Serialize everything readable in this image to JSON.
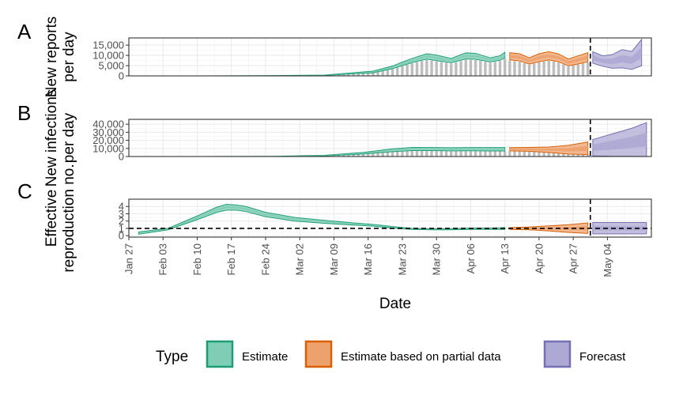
{
  "colors": {
    "estimate": "#1b9e77",
    "estimate_fill": "#7fcdb4",
    "partial": "#d95f02",
    "partial_fill": "#eda26d",
    "forecast": "#7570b3",
    "forecast_fill": "#ada9d4",
    "bars": "#bdbdbd"
  },
  "chart_data": [
    {
      "panel": "A",
      "type": "area",
      "ylabel_lines": [
        "New reports",
        "per day"
      ],
      "yticks": [
        0,
        5000,
        10000,
        15000
      ],
      "ytick_labels": [
        "0",
        "5,000",
        "10,000",
        "15,000"
      ],
      "ylim": [
        0,
        18500
      ],
      "bars_note": "daily reported cases shown as grey bars",
      "series": [
        {
          "type": "Estimate",
          "x": [
            0,
            10,
            20,
            30,
            40,
            50,
            54,
            56,
            58,
            61,
            63,
            66,
            69,
            71,
            74,
            76,
            77
          ],
          "lower": [
            0,
            0,
            20,
            80,
            250,
            1500,
            3500,
            5000,
            6500,
            8200,
            7400,
            6400,
            8300,
            8100,
            6800,
            7600,
            8800
          ],
          "upper": [
            0,
            0,
            40,
            140,
            400,
            2300,
            4800,
            6700,
            8500,
            10800,
            10100,
            8500,
            11200,
            11000,
            8800,
            9800,
            11500
          ]
        },
        {
          "type": "Estimate based on partial data",
          "x": [
            78,
            80,
            82,
            84,
            86,
            88,
            90,
            92,
            94
          ],
          "lower": [
            7800,
            7300,
            5800,
            6900,
            7800,
            6900,
            4900,
            5800,
            6900
          ],
          "upper": [
            11300,
            10800,
            8800,
            10800,
            11800,
            10700,
            8200,
            9800,
            11300
          ]
        },
        {
          "type": "Forecast",
          "x": [
            95,
            97,
            99,
            101,
            103,
            105
          ],
          "lower": [
            6200,
            4700,
            3700,
            3900,
            3200,
            4900
          ],
          "upper": [
            11800,
            9800,
            10400,
            12800,
            11900,
            17800
          ]
        }
      ]
    },
    {
      "panel": "B",
      "type": "area",
      "ylabel_lines": [
        "New infections",
        "per day"
      ],
      "yticks": [
        0,
        10000,
        20000,
        30000,
        40000
      ],
      "ytick_labels": [
        "0",
        "10,000",
        "20,000",
        "30,000",
        "40,000"
      ],
      "ylim": [
        0,
        46000
      ],
      "series": [
        {
          "type": "Estimate",
          "x": [
            0,
            10,
            20,
            30,
            40,
            48,
            54,
            58,
            62,
            66,
            70,
            74,
            77
          ],
          "lower": [
            0,
            0,
            40,
            150,
            800,
            3000,
            6000,
            7400,
            7300,
            7000,
            7100,
            6900,
            6900
          ],
          "upper": [
            0,
            0,
            80,
            300,
            1500,
            5000,
            9500,
            11200,
            11100,
            10900,
            11100,
            11100,
            11100
          ]
        },
        {
          "type": "Estimate based on partial data",
          "x": [
            78,
            82,
            86,
            90,
            94
          ],
          "lower": [
            7000,
            6500,
            5000,
            3000,
            2300
          ],
          "upper": [
            11000,
            11200,
            11800,
            13800,
            18000
          ]
        },
        {
          "type": "Forecast",
          "x": [
            95,
            99,
            103,
            106
          ],
          "lower": [
            800,
            300,
            200,
            0
          ],
          "upper": [
            21000,
            28000,
            35000,
            42000
          ]
        }
      ]
    },
    {
      "panel": "C",
      "type": "area",
      "ylabel_lines": [
        "Effective",
        "reproduction no."
      ],
      "yticks": [
        0,
        1,
        2,
        3,
        4
      ],
      "ytick_labels": [
        "0",
        "1",
        "2",
        "3",
        "4"
      ],
      "ylim": [
        -0.2,
        5.0
      ],
      "hline": 1,
      "series": [
        {
          "type": "Estimate",
          "x": [
            2,
            8,
            14,
            18,
            20,
            22,
            24,
            28,
            34,
            40,
            46,
            50,
            54,
            58,
            62,
            66,
            70,
            74,
            77
          ],
          "lower": [
            0.2,
            0.8,
            2.2,
            3.2,
            3.5,
            3.5,
            3.3,
            2.6,
            2.0,
            1.7,
            1.45,
            1.3,
            1.05,
            0.85,
            0.8,
            0.8,
            0.85,
            0.85,
            0.85
          ],
          "upper": [
            0.5,
            1.0,
            2.7,
            3.9,
            4.3,
            4.2,
            4.0,
            3.2,
            2.5,
            2.1,
            1.75,
            1.55,
            1.25,
            1.0,
            0.95,
            0.95,
            1.05,
            1.05,
            1.1
          ]
        },
        {
          "type": "Estimate based on partial data",
          "x": [
            78,
            82,
            86,
            90,
            94
          ],
          "lower": [
            0.85,
            0.8,
            0.65,
            0.45,
            0.3
          ],
          "upper": [
            1.1,
            1.2,
            1.35,
            1.5,
            1.75
          ]
        },
        {
          "type": "Forecast",
          "x": [
            95,
            97,
            100,
            103,
            106
          ],
          "lower": [
            0.25,
            0.25,
            0.25,
            0.25,
            0.25
          ],
          "upper": [
            1.8,
            1.8,
            1.8,
            1.8,
            1.8
          ]
        }
      ]
    }
  ],
  "x_axis": {
    "xlabel": "Date",
    "day_start": 0,
    "day_end": 107,
    "ticks": [
      {
        "day": 0,
        "label": "Jan 27"
      },
      {
        "day": 7,
        "label": "Feb 03"
      },
      {
        "day": 14,
        "label": "Feb 10"
      },
      {
        "day": 21,
        "label": "Feb 17"
      },
      {
        "day": 28,
        "label": "Feb 24"
      },
      {
        "day": 35,
        "label": "Mar 02"
      },
      {
        "day": 42,
        "label": "Mar 09"
      },
      {
        "day": 49,
        "label": "Mar 16"
      },
      {
        "day": 56,
        "label": "Mar 23"
      },
      {
        "day": 63,
        "label": "Mar 30"
      },
      {
        "day": 70,
        "label": "Apr 06"
      },
      {
        "day": 77,
        "label": "Apr 13"
      },
      {
        "day": 84,
        "label": "Apr 20"
      },
      {
        "day": 91,
        "label": "Apr 27"
      },
      {
        "day": 98,
        "label": "May 04"
      }
    ],
    "vline_day": 94.5
  },
  "legend": {
    "title": "Type",
    "items": [
      {
        "label": "Estimate",
        "key": "estimate"
      },
      {
        "label": "Estimate based on partial data",
        "key": "partial"
      },
      {
        "label": "Forecast",
        "key": "forecast"
      }
    ]
  }
}
